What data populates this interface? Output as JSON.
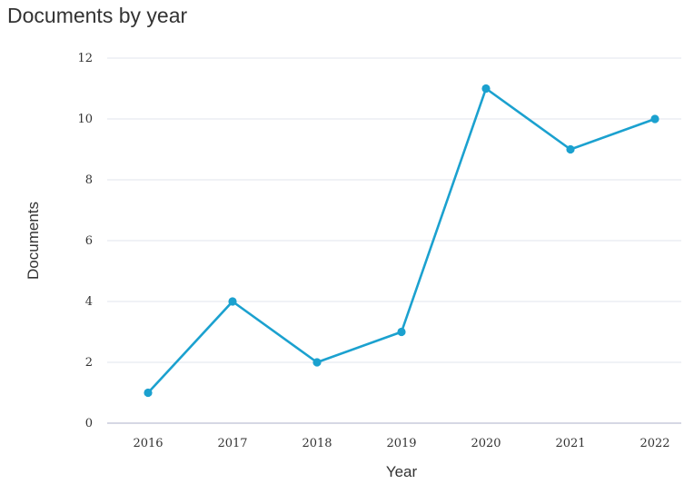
{
  "chart_data": {
    "type": "line",
    "title": "Documents by year",
    "xlabel": "Year",
    "ylabel": "Documents",
    "categories": [
      "2016",
      "2017",
      "2018",
      "2019",
      "2020",
      "2021",
      "2022"
    ],
    "series": [
      {
        "values": [
          1,
          4,
          2,
          3,
          11,
          9,
          10
        ]
      }
    ],
    "ylim": [
      0,
      12
    ],
    "yticks": [
      0,
      2,
      4,
      6,
      8,
      10,
      12
    ],
    "grid": "horizontal",
    "colors": {
      "line": "#1BA1CF",
      "grid": "#E2E4EE",
      "axis": "#C9CCDC",
      "text": "#333333"
    }
  }
}
